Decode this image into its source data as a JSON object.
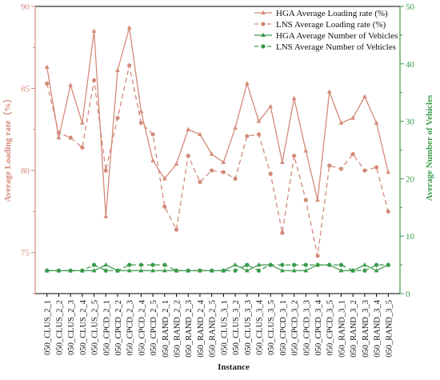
{
  "chart_data": {
    "type": "line",
    "xlabel": "Instance",
    "ylabel_left": "Average Loading rate（%）",
    "ylabel_right": "Average Number of Vehicles",
    "ylim_left": [
      72.5,
      90
    ],
    "ylim_right": [
      0,
      50
    ],
    "yticks_left": [
      "75",
      "80",
      "85",
      "90"
    ],
    "yticks_right": [
      "0",
      "10",
      "20",
      "30",
      "40",
      "50"
    ],
    "grid": false,
    "legend_position": "top-right",
    "categories": [
      "050_CLUS_2_1",
      "050_CLUS_2_2",
      "050_CLUS_2_3",
      "050_CLUS_2_4",
      "050_CLUS_2_5",
      "050_CPCD_2_1",
      "050_CPCD_2_2",
      "050_CPCD_2_3",
      "050_CPCD_2_4",
      "050_CPCD_2_5",
      "050_RAND_2_1",
      "050_RAND_2_2",
      "050_RAND_2_3",
      "050_RAND_2_4",
      "050_RAND_2_5",
      "050_CLUS_3_1",
      "050_CLUS_3_2",
      "050_CLUS_3_3",
      "050_CLUS_3_4",
      "050_CLUS_3_5",
      "050_CPCD_3_1",
      "050_CPCD_3_2",
      "050_CPCD_3_3",
      "050_CPCD_3_4",
      "050_CPCD_3_5",
      "050_RAND_3_1",
      "050_RAND_3_2",
      "050_RAND_3_3",
      "050_RAND_3_4",
      "050_RAND_3_5"
    ],
    "colors": {
      "loading": "#d48a7a",
      "vehicles": "#3a9a4a",
      "axis_left": "#d48a7a",
      "axis_right": "#3a9a4a"
    },
    "series": [
      {
        "name": "HGA Average Loading rate (%)",
        "axis": "left",
        "style": "solid",
        "marker": "triangle",
        "values": [
          86.3,
          82.0,
          85.2,
          82.9,
          88.5,
          77.2,
          86.1,
          88.7,
          83.6,
          80.6,
          79.5,
          80.4,
          82.5,
          82.2,
          81.0,
          80.5,
          82.6,
          85.3,
          83.0,
          83.9,
          80.5,
          84.4,
          81.2,
          78.2,
          84.8,
          82.9,
          83.2,
          84.5,
          82.9,
          79.9
        ]
      },
      {
        "name": "LNS Average Loading rate (%)",
        "axis": "left",
        "style": "dashed",
        "marker": "circle",
        "values": [
          85.3,
          82.3,
          82.0,
          81.4,
          85.5,
          80.0,
          83.2,
          86.4,
          82.9,
          82.2,
          77.8,
          76.4,
          80.9,
          79.3,
          80.0,
          79.9,
          79.5,
          82.1,
          82.2,
          79.8,
          76.2,
          80.9,
          78.2,
          74.8,
          80.3,
          80.1,
          81.0,
          80.0,
          80.2,
          77.5
        ]
      },
      {
        "name": "HGA Average Number of Vehicles",
        "axis": "right",
        "style": "solid",
        "marker": "triangle",
        "values": [
          4,
          4,
          4,
          4,
          4,
          5,
          4,
          4,
          4,
          4,
          4,
          4,
          4,
          4,
          4,
          4,
          5,
          4,
          5,
          5,
          4,
          4,
          4,
          5,
          5,
          4,
          4,
          5,
          4,
          5
        ]
      },
      {
        "name": "LNS Average Number of Vehicles",
        "axis": "right",
        "style": "dashed",
        "marker": "circle",
        "values": [
          4,
          4,
          4,
          4,
          5,
          4,
          4,
          5,
          5,
          5,
          5,
          4,
          4,
          4,
          4,
          4,
          4,
          5,
          4,
          5,
          5,
          5,
          5,
          5,
          5,
          5,
          4,
          4,
          5,
          5
        ]
      }
    ]
  }
}
